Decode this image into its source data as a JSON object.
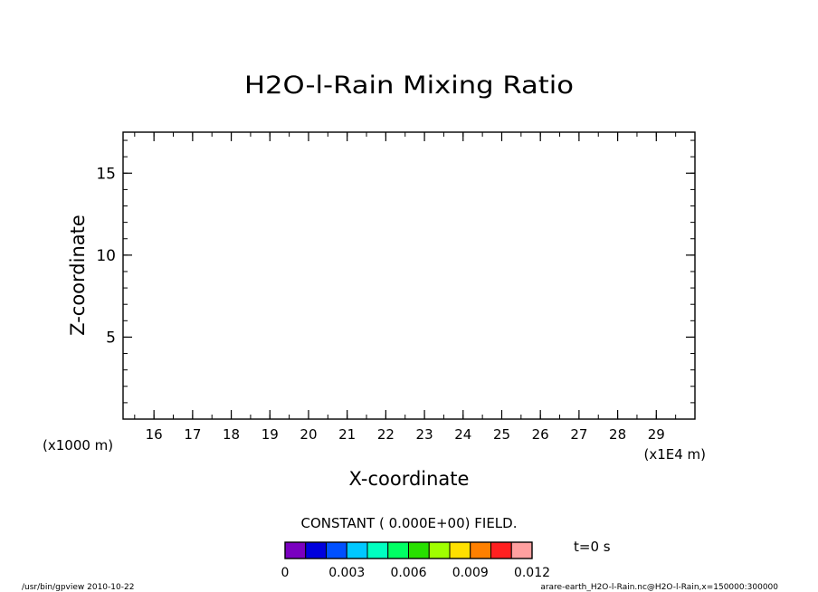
{
  "chart_data": {
    "type": "heatmap",
    "title": "H2O-l-Rain Mixing Ratio",
    "xlabel": "X-coordinate",
    "ylabel": "Z-coordinate",
    "x_scale_label": "(x1E4 m)",
    "y_scale_label": "(x1000 m)",
    "xlim": [
      15.2,
      30.0
    ],
    "ylim": [
      0.0,
      17.5
    ],
    "x_ticks": [
      16,
      17,
      18,
      19,
      20,
      21,
      22,
      23,
      24,
      25,
      26,
      27,
      28,
      29
    ],
    "y_ticks": [
      5,
      10,
      15
    ],
    "x_minor_step": 0.5,
    "y_minor_step": 1,
    "field_message": "CONSTANT ( 0.000E+00) FIELD.",
    "time_label": "t=0 s",
    "colorbar": {
      "colors": [
        "#7a00c0",
        "#0000dd",
        "#0050ff",
        "#00c8ff",
        "#00ffc0",
        "#00ff64",
        "#28e000",
        "#a0ff00",
        "#ffe000",
        "#ff8000",
        "#ff2020",
        "#ffa0a0"
      ],
      "tick_values": [
        0,
        0.003,
        0.006,
        0.009,
        0.012
      ],
      "tick_labels": [
        "0",
        "0.003",
        "0.006",
        "0.009",
        "0.012"
      ],
      "vmin": 0,
      "vmax": 0.012
    }
  },
  "footer": {
    "left": "/usr/bin/gpview   2010-10-22",
    "right": "arare-earth_H2O-l-Rain.nc@H2O-l-Rain,x=150000:300000"
  }
}
